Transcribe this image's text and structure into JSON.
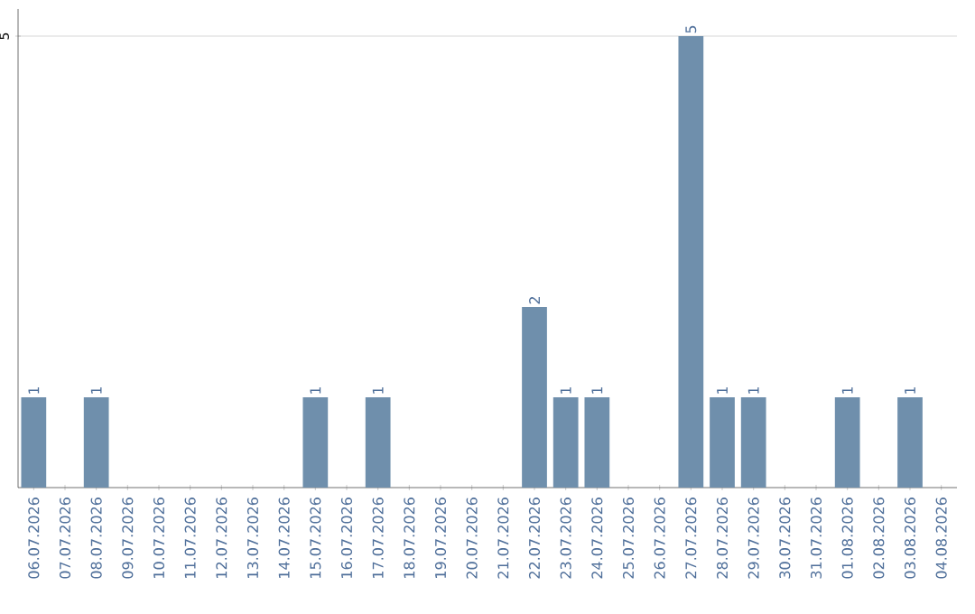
{
  "chart_data": {
    "type": "bar",
    "categories": [
      "06.07.2026",
      "07.07.2026",
      "08.07.2026",
      "09.07.2026",
      "10.07.2026",
      "11.07.2026",
      "12.07.2026",
      "13.07.2026",
      "14.07.2026",
      "15.07.2026",
      "16.07.2026",
      "17.07.2026",
      "18.07.2026",
      "19.07.2026",
      "20.07.2026",
      "21.07.2026",
      "22.07.2026",
      "23.07.2026",
      "24.07.2026",
      "25.07.2026",
      "26.07.2026",
      "27.07.2026",
      "28.07.2026",
      "29.07.2026",
      "30.07.2026",
      "31.07.2026",
      "01.08.2026",
      "02.08.2026",
      "03.08.2026",
      "04.08.2026"
    ],
    "values": [
      1,
      0,
      1,
      0,
      0,
      0,
      0,
      0,
      0,
      1,
      0,
      1,
      0,
      0,
      0,
      0,
      2,
      1,
      1,
      0,
      0,
      5,
      1,
      1,
      0,
      0,
      1,
      0,
      1,
      0
    ],
    "value_labels": [
      "1",
      null,
      "1",
      null,
      null,
      null,
      null,
      null,
      null,
      "1",
      null,
      "1",
      null,
      null,
      null,
      null,
      "2",
      "1",
      "1",
      null,
      null,
      "5",
      "1",
      "1",
      null,
      null,
      "1",
      null,
      "1",
      null
    ],
    "color": "#6f8fac",
    "ylim": [
      0,
      5.3
    ],
    "yticks": [
      5
    ],
    "grid": "y"
  }
}
